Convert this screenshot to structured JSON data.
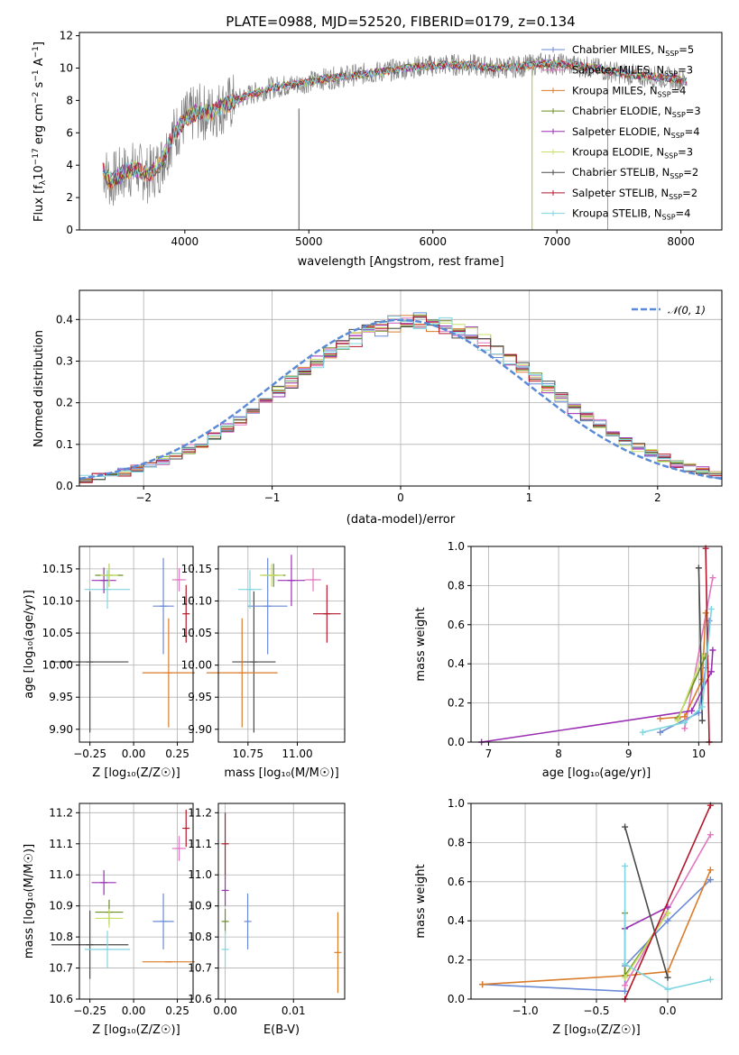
{
  "chart_data": [
    {
      "id": "spectrum",
      "type": "line",
      "title": "PLATE=0988, MJD=52520, FIBERID=0179, z=0.134",
      "xlabel": "wavelength [Angstrom, rest frame]",
      "ylabel_parts": {
        "a": "Flux [f",
        "b": "λ",
        "c": "10",
        "d": "−17",
        "e": " erg cm",
        "f": "−2",
        "g": " s",
        "h": "−1",
        "i": " A",
        "j": "−1",
        "k": "]"
      },
      "xlim": [
        3150,
        8330
      ],
      "ylim": [
        0,
        12.2
      ],
      "xticks": [
        4000,
        5000,
        6000,
        7000,
        8000
      ],
      "yticks": [
        0,
        2,
        4,
        6,
        8,
        10,
        12
      ],
      "grid": false,
      "legend_position": "top-right",
      "data_envelope": {
        "x": [
          3340,
          3400,
          3500,
          3600,
          3700,
          3800,
          3900,
          4000,
          4100,
          4200,
          4300,
          4500,
          4700,
          4900,
          5100,
          5300,
          5500,
          5700,
          5900,
          6100,
          6300,
          6500,
          6700,
          6900,
          7100,
          7300,
          7500,
          7700,
          7900,
          8050
        ],
        "y": [
          3.8,
          3.0,
          3.5,
          3.8,
          3.4,
          4.0,
          5.8,
          6.8,
          7.3,
          7.2,
          7.6,
          8.3,
          8.8,
          9.0,
          9.3,
          9.5,
          9.7,
          9.9,
          10.1,
          10.2,
          10.2,
          10.0,
          10.1,
          10.3,
          10.2,
          10.0,
          9.7,
          9.5,
          9.4,
          9.2
        ]
      },
      "spikes": [
        {
          "x": 4920,
          "y_from": 0,
          "y_to": 7.5,
          "color": "#555555"
        },
        {
          "x": 6800,
          "y_from": 0,
          "y_to": 10.3,
          "color": "#9acd32"
        },
        {
          "x": 7410,
          "y_from": 0,
          "y_to": 9.8,
          "color": "#e08050"
        }
      ],
      "series": [
        {
          "name": "Chabrier MILES, N",
          "sub": "SSP",
          "suffix": "=5",
          "color": "#6a8ad6"
        },
        {
          "name": "Salpeter MILES, N",
          "sub": "SSP",
          "suffix": "=3",
          "color": "#e377c2"
        },
        {
          "name": "Kroupa MILES, N",
          "sub": "SSP",
          "suffix": "=4",
          "color": "#d97c2b"
        },
        {
          "name": "Chabrier ELODIE, N",
          "sub": "SSP",
          "suffix": "=3",
          "color": "#6b8e23"
        },
        {
          "name": "Salpeter ELODIE, N",
          "sub": "SSP",
          "suffix": "=4",
          "color": "#9a2fb4"
        },
        {
          "name": "Kroupa ELODIE, N",
          "sub": "SSP",
          "suffix": "=3",
          "color": "#c8e06a"
        },
        {
          "name": "Chabrier STELIB, N",
          "sub": "SSP",
          "suffix": "=2",
          "color": "#4a4a4a"
        },
        {
          "name": "Salpeter STELIB, N",
          "sub": "SSP",
          "suffix": "=2",
          "color": "#b2182b"
        },
        {
          "name": "Kroupa STELIB, N",
          "sub": "SSP",
          "suffix": "=4",
          "color": "#7fd6e0"
        }
      ]
    },
    {
      "id": "residuals",
      "type": "line",
      "xlabel": "(data-model)/error",
      "ylabel": "Normed distribution",
      "xlim": [
        -2.5,
        2.5
      ],
      "ylim": [
        0,
        0.47
      ],
      "xticks": [
        -2,
        -1,
        0,
        1,
        2
      ],
      "yticks": [
        0.0,
        0.1,
        0.2,
        0.3,
        0.4
      ],
      "grid": true,
      "legend_position": "top-right",
      "legend": "𝒩(0, 1)",
      "reference_color": "#5b8bd6",
      "bin_width": 0.1,
      "bin_start": -2.5,
      "histogram_colors": [
        "#6a8ad6",
        "#e377c2",
        "#d97c2b",
        "#6b8e23",
        "#9a2fb4",
        "#c8e06a",
        "#4a4a4a",
        "#b2182b",
        "#7fd6e0"
      ]
    },
    {
      "id": "age_vs_Z",
      "type": "scatter",
      "xlabel": "Z [log₁₀(Z/Z☉)]",
      "ylabel": "age  [log₁₀(age/yr)]",
      "xlim": [
        -0.31,
        0.34
      ],
      "ylim": [
        9.88,
        10.185
      ],
      "xticks": [
        -0.25,
        0.0,
        0.25
      ],
      "xticklabels": [
        "−0.25",
        "0.00",
        "0.25"
      ],
      "yticks": [
        9.9,
        9.95,
        10.0,
        10.05,
        10.1,
        10.15
      ],
      "grid": true,
      "points": [
        {
          "x": -0.25,
          "y": 10.005,
          "xerr": 0.22,
          "yerr": 0.11,
          "color": "#4a4a4a"
        },
        {
          "x": 0.2,
          "y": 9.988,
          "xerr": 0.15,
          "yerr": 0.085,
          "color": "#d97c2b"
        },
        {
          "x": 0.17,
          "y": 10.092,
          "xerr": 0.06,
          "yerr": 0.075,
          "color": "#6a8ad6"
        },
        {
          "x": -0.15,
          "y": 10.118,
          "xerr": 0.13,
          "yerr": 0.03,
          "color": "#7fd6e0"
        },
        {
          "x": -0.14,
          "y": 10.14,
          "xerr": 0.08,
          "yerr": 0.018,
          "color": "#6b8e23"
        },
        {
          "x": -0.17,
          "y": 10.132,
          "xerr": 0.07,
          "yerr": 0.02,
          "color": "#9a2fb4"
        },
        {
          "x": -0.14,
          "y": 10.14,
          "xerr": 0.05,
          "yerr": 0.018,
          "color": "#c8e06a"
        },
        {
          "x": 0.26,
          "y": 10.133,
          "xerr": 0.04,
          "yerr": 0.018,
          "color": "#e377c2"
        },
        {
          "x": 0.3,
          "y": 10.08,
          "xerr": 0.0,
          "yerr": 0.045,
          "color": "#b2182b"
        }
      ]
    },
    {
      "id": "age_vs_mass",
      "type": "scatter",
      "xlabel": "mass [log₁₀(M/M☉)]",
      "xlim": [
        10.6,
        11.24
      ],
      "ylim": [
        9.88,
        10.185
      ],
      "xticks": [
        10.75,
        11.0
      ],
      "xticklabels": [
        "10.75",
        "11.00"
      ],
      "yticks": [
        9.9,
        9.95,
        10.0,
        10.05,
        10.1,
        10.15
      ],
      "grid": true,
      "points": [
        {
          "x": 10.78,
          "y": 10.005,
          "xerr": 0.11,
          "yerr": 0.11,
          "color": "#4a4a4a"
        },
        {
          "x": 10.72,
          "y": 9.988,
          "xerr": 0.18,
          "yerr": 0.085,
          "color": "#d97c2b"
        },
        {
          "x": 10.85,
          "y": 10.092,
          "xerr": 0.1,
          "yerr": 0.075,
          "color": "#6a8ad6"
        },
        {
          "x": 10.76,
          "y": 10.118,
          "xerr": 0.06,
          "yerr": 0.03,
          "color": "#7fd6e0"
        },
        {
          "x": 10.88,
          "y": 10.14,
          "xerr": 0.06,
          "yerr": 0.018,
          "color": "#6b8e23"
        },
        {
          "x": 10.97,
          "y": 10.132,
          "xerr": 0.07,
          "yerr": 0.04,
          "color": "#9a2fb4"
        },
        {
          "x": 10.87,
          "y": 10.14,
          "xerr": 0.06,
          "yerr": 0.018,
          "color": "#c8e06a"
        },
        {
          "x": 11.08,
          "y": 10.133,
          "xerr": 0.04,
          "yerr": 0.018,
          "color": "#e377c2"
        },
        {
          "x": 11.15,
          "y": 10.08,
          "xerr": 0.07,
          "yerr": 0.045,
          "color": "#b2182b"
        }
      ]
    },
    {
      "id": "weight_vs_age",
      "type": "line",
      "xlabel": "age  [log₁₀(age/yr)]",
      "ylabel": "mass weight",
      "xlim": [
        6.75,
        10.33
      ],
      "ylim": [
        0,
        1.0
      ],
      "xticks": [
        7,
        8,
        9,
        10
      ],
      "yticks": [
        0.0,
        0.2,
        0.4,
        0.6,
        0.8,
        1.0
      ],
      "grid": true,
      "series": [
        {
          "color": "#6a8ad6",
          "points": [
            [
              9.45,
              0.05
            ],
            [
              10.0,
              0.15
            ],
            [
              10.1,
              0.38
            ],
            [
              10.15,
              0.62
            ]
          ]
        },
        {
          "color": "#e377c2",
          "points": [
            [
              9.8,
              0.07
            ],
            [
              10.2,
              0.84
            ]
          ]
        },
        {
          "color": "#d97c2b",
          "points": [
            [
              9.45,
              0.12
            ],
            [
              9.8,
              0.13
            ],
            [
              10.05,
              0.32
            ],
            [
              10.1,
              0.66
            ]
          ]
        },
        {
          "color": "#6b8e23",
          "points": [
            [
              9.7,
              0.12
            ],
            [
              10.1,
              0.44
            ]
          ]
        },
        {
          "color": "#9a2fb4",
          "points": [
            [
              6.9,
              0.0
            ],
            [
              9.9,
              0.16
            ],
            [
              10.18,
              0.36
            ],
            [
              10.2,
              0.47
            ]
          ]
        },
        {
          "color": "#c8e06a",
          "points": [
            [
              9.7,
              0.11
            ],
            [
              10.05,
              0.44
            ]
          ]
        },
        {
          "color": "#4a4a4a",
          "points": [
            [
              10.0,
              0.89
            ],
            [
              10.05,
              0.11
            ]
          ]
        },
        {
          "color": "#b2182b",
          "points": [
            [
              10.15,
              0.0
            ],
            [
              10.1,
              0.99
            ]
          ]
        },
        {
          "color": "#7fd6e0",
          "points": [
            [
              9.2,
              0.05
            ],
            [
              9.8,
              0.1
            ],
            [
              10.05,
              0.18
            ],
            [
              10.18,
              0.68
            ]
          ]
        }
      ]
    },
    {
      "id": "mass_vs_Z",
      "type": "scatter",
      "xlabel": "Z [log₁₀(Z/Z☉)]",
      "ylabel": "mass [log₁₀(M/M☉)]",
      "xlim": [
        -0.31,
        0.34
      ],
      "ylim": [
        10.6,
        11.23
      ],
      "xticks": [
        -0.25,
        0.0,
        0.25
      ],
      "xticklabels": [
        "−0.25",
        "0.00",
        "0.25"
      ],
      "yticks": [
        10.6,
        10.7,
        10.8,
        10.9,
        11.0,
        11.1,
        11.2
      ],
      "grid": true,
      "points": [
        {
          "x": -0.25,
          "y": 10.775,
          "xerr": 0.22,
          "yerr": 0.11,
          "color": "#4a4a4a"
        },
        {
          "x": 0.2,
          "y": 10.72,
          "xerr": 0.15,
          "yerr": 0.0,
          "color": "#d97c2b"
        },
        {
          "x": 0.17,
          "y": 10.85,
          "xerr": 0.06,
          "yerr": 0.09,
          "color": "#6a8ad6"
        },
        {
          "x": -0.15,
          "y": 10.76,
          "xerr": 0.13,
          "yerr": 0.06,
          "color": "#7fd6e0"
        },
        {
          "x": -0.14,
          "y": 10.88,
          "xerr": 0.08,
          "yerr": 0.04,
          "color": "#6b8e23"
        },
        {
          "x": -0.17,
          "y": 10.975,
          "xerr": 0.07,
          "yerr": 0.04,
          "color": "#9a2fb4"
        },
        {
          "x": -0.14,
          "y": 10.86,
          "xerr": 0.08,
          "yerr": 0.03,
          "color": "#c8e06a"
        },
        {
          "x": 0.26,
          "y": 11.085,
          "xerr": 0.04,
          "yerr": 0.04,
          "color": "#e377c2"
        },
        {
          "x": 0.3,
          "y": 11.15,
          "xerr": 0.0,
          "yerr": 0.06,
          "color": "#b2182b"
        }
      ]
    },
    {
      "id": "mass_vs_EBV",
      "type": "scatter",
      "xlabel": "E(B-V)",
      "xlim": [
        -0.001,
        0.0175
      ],
      "ylim": [
        10.6,
        11.23
      ],
      "xticks": [
        0.0,
        0.01
      ],
      "xticklabels": [
        "0.00",
        "0.01"
      ],
      "yticks": [
        10.6,
        10.7,
        10.8,
        10.9,
        11.0,
        11.1,
        11.2
      ],
      "grid": true,
      "points": [
        {
          "x": 0.0,
          "y": 11.1,
          "xerr": 0.0,
          "yerr": 0.1,
          "color": "#b2182b"
        },
        {
          "x": 0.0,
          "y": 10.95,
          "xerr": 0.0,
          "yerr": 0.05,
          "color": "#9a2fb4"
        },
        {
          "x": 0.0,
          "y": 10.85,
          "xerr": 0.0,
          "yerr": 0.04,
          "color": "#6b8e23"
        },
        {
          "x": 0.0,
          "y": 10.76,
          "xerr": 0.0,
          "yerr": 0.06,
          "color": "#7fd6e0"
        },
        {
          "x": 0.0033,
          "y": 10.85,
          "xerr": 0.0,
          "yerr": 0.09,
          "color": "#6a8ad6"
        },
        {
          "x": 0.0165,
          "y": 10.75,
          "xerr": 0.0,
          "yerr": 0.13,
          "color": "#d97c2b"
        }
      ]
    },
    {
      "id": "weight_vs_Z",
      "type": "line",
      "xlabel": "Z [log₁₀(Z/Z☉)]",
      "ylabel": "mass weight",
      "xlim": [
        -1.38,
        0.38
      ],
      "ylim": [
        0,
        1.0
      ],
      "xticks": [
        -1.0,
        -0.5,
        0.0
      ],
      "xticklabels": [
        "−1.0",
        "−0.5",
        "0.0"
      ],
      "yticks": [
        0.0,
        0.2,
        0.4,
        0.6,
        0.8,
        1.0
      ],
      "grid": true,
      "series": [
        {
          "color": "#6a8ad6",
          "points": [
            [
              -1.3,
              0.075
            ],
            [
              -0.3,
              0.04
            ],
            [
              -0.3,
              0.17
            ],
            [
              0.0,
              0.4
            ],
            [
              0.3,
              0.61
            ]
          ]
        },
        {
          "color": "#d97c2b",
          "points": [
            [
              -1.3,
              0.075
            ],
            [
              -0.3,
              0.12
            ],
            [
              0.0,
              0.14
            ],
            [
              0.3,
              0.66
            ]
          ]
        },
        {
          "color": "#e377c2",
          "points": [
            [
              -0.3,
              0.07
            ],
            [
              0.3,
              0.84
            ]
          ]
        },
        {
          "color": "#6b8e23",
          "points": [
            [
              -0.3,
              0.44
            ],
            [
              -0.3,
              0.12
            ],
            [
              0.0,
              0.44
            ]
          ]
        },
        {
          "color": "#9a2fb4",
          "points": [
            [
              -0.3,
              0.36
            ],
            [
              0.0,
              0.47
            ]
          ]
        },
        {
          "color": "#c8e06a",
          "points": [
            [
              -0.3,
              0.11
            ],
            [
              0.0,
              0.44
            ]
          ]
        },
        {
          "color": "#4a4a4a",
          "points": [
            [
              -0.3,
              0.88
            ],
            [
              0.0,
              0.11
            ]
          ]
        },
        {
          "color": "#b2182b",
          "points": [
            [
              -0.3,
              0.0
            ],
            [
              0.3,
              0.99
            ]
          ]
        },
        {
          "color": "#7fd6e0",
          "points": [
            [
              -0.3,
              0.68
            ],
            [
              -0.3,
              0.18
            ],
            [
              0.0,
              0.05
            ],
            [
              0.3,
              0.1
            ]
          ]
        }
      ]
    }
  ]
}
